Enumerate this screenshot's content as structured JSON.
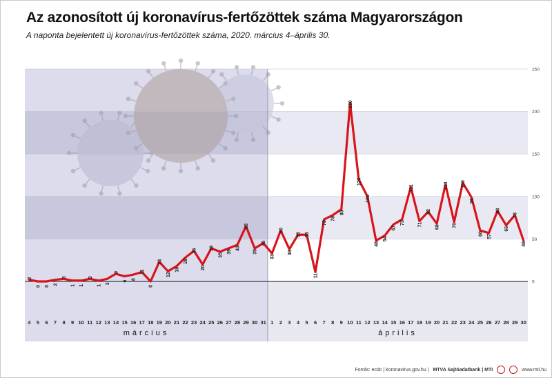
{
  "title": "Az azonosított új koronavírus-fertőzöttek száma Magyarországon",
  "subtitle": "A naponta bejelentett új koronavírus-fertőzöttek száma, 2020. március 4–április 30.",
  "footer": {
    "source": "Forrás: ecdc | koronavirus.gov.hu |",
    "brand": "MTVA Sajtóadatbank | MTI",
    "site": "www.mti.hu"
  },
  "colors": {
    "line": "#d8141a",
    "march_bg": "#dcdcec",
    "march_band": "#c7c7de",
    "april_bg": "#ffffff",
    "april_band": "#e9e9f3",
    "axis_band": "#e8e8f1"
  },
  "chart_data": {
    "type": "line",
    "title": "Az azonosított új koronavírus-fertőzöttek száma Magyarországon",
    "subtitle": "A naponta bejelentett új koronavírus-fertőzöttek száma, 2020. március 4–április 30.",
    "ylim": [
      0,
      250
    ],
    "yticks": [
      0,
      50,
      100,
      150,
      200,
      250
    ],
    "grid": true,
    "months": [
      {
        "label": "március",
        "start": 0,
        "end": 27
      },
      {
        "label": "április",
        "start": 28,
        "end": 57
      }
    ],
    "day_labels": [
      "4",
      "5",
      "6",
      "7",
      "8",
      "9",
      "10",
      "11",
      "12",
      "13",
      "14",
      "15",
      "16",
      "17",
      "18",
      "19",
      "20",
      "21",
      "22",
      "23",
      "24",
      "25",
      "26",
      "27",
      "28",
      "29",
      "30",
      "31",
      "1",
      "2",
      "3",
      "4",
      "5",
      "6",
      "7",
      "8",
      "9",
      "10",
      "11",
      "12",
      "13",
      "14",
      "15",
      "16",
      "17",
      "18",
      "19",
      "20",
      "21",
      "22",
      "23",
      "24",
      "25",
      "26",
      "27",
      "28",
      "29",
      "30"
    ],
    "values": [
      2,
      0,
      0,
      2,
      3,
      1,
      1,
      3,
      1,
      3,
      9,
      6,
      8,
      11,
      0,
      23,
      12,
      18,
      28,
      36,
      20,
      39,
      35,
      39,
      43,
      65,
      39,
      45,
      33,
      60,
      38,
      55,
      55,
      11,
      73,
      78,
      85,
      210,
      120,
      100,
      48,
      54,
      67,
      73,
      111,
      71,
      82,
      68,
      114,
      70,
      116,
      99,
      60,
      57,
      83,
      66,
      78,
      48
    ]
  }
}
